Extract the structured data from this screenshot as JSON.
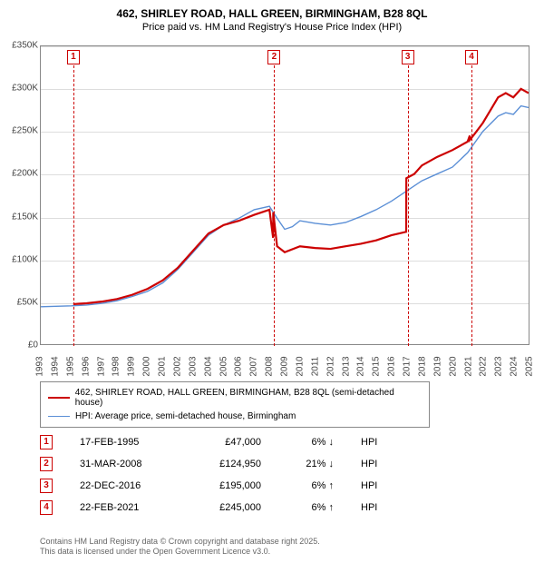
{
  "title": "462, SHIRLEY ROAD, HALL GREEN, BIRMINGHAM, B28 8QL",
  "subtitle": "Price paid vs. HM Land Registry's House Price Index (HPI)",
  "chart": {
    "type": "line",
    "background_color": "#ffffff",
    "grid_color": "#dddddd",
    "border_color": "#888888",
    "ylim": [
      0,
      350000
    ],
    "ytick_step": 50000,
    "yticks": [
      "£0",
      "£50K",
      "£100K",
      "£150K",
      "£200K",
      "£250K",
      "£300K",
      "£350K"
    ],
    "xlim": [
      1993,
      2025
    ],
    "xticks": [
      1993,
      1994,
      1995,
      1996,
      1997,
      1998,
      1999,
      2000,
      2001,
      2002,
      2003,
      2004,
      2005,
      2006,
      2007,
      2008,
      2009,
      2010,
      2011,
      2012,
      2013,
      2014,
      2015,
      2016,
      2017,
      2018,
      2019,
      2020,
      2021,
      2022,
      2023,
      2024,
      2025
    ],
    "label_fontsize": 10,
    "series": [
      {
        "name": "price_paid",
        "color": "#cc0000",
        "line_width": 2.2,
        "data": [
          [
            1995.13,
            47000
          ],
          [
            1995.5,
            47500
          ],
          [
            1996,
            48000
          ],
          [
            1997,
            50000
          ],
          [
            1998,
            53000
          ],
          [
            1999,
            58000
          ],
          [
            2000,
            65000
          ],
          [
            2001,
            75000
          ],
          [
            2002,
            90000
          ],
          [
            2003,
            110000
          ],
          [
            2004,
            130000
          ],
          [
            2005,
            140000
          ],
          [
            2006,
            145000
          ],
          [
            2007,
            152000
          ],
          [
            2008,
            158000
          ],
          [
            2008.24,
            124950
          ],
          [
            2008.25,
            155000
          ],
          [
            2008.5,
            115000
          ],
          [
            2009,
            108000
          ],
          [
            2010,
            115000
          ],
          [
            2011,
            113000
          ],
          [
            2012,
            112000
          ],
          [
            2013,
            115000
          ],
          [
            2014,
            118000
          ],
          [
            2015,
            122000
          ],
          [
            2016,
            128000
          ],
          [
            2016.97,
            132000
          ],
          [
            2016.98,
            195000
          ],
          [
            2017.5,
            200000
          ],
          [
            2018,
            210000
          ],
          [
            2019,
            220000
          ],
          [
            2020,
            228000
          ],
          [
            2021,
            238000
          ],
          [
            2021.14,
            245000
          ],
          [
            2021.15,
            240000
          ],
          [
            2021.5,
            248000
          ],
          [
            2022,
            260000
          ],
          [
            2022.5,
            275000
          ],
          [
            2023,
            290000
          ],
          [
            2023.5,
            295000
          ],
          [
            2024,
            290000
          ],
          [
            2024.5,
            300000
          ],
          [
            2025,
            295000
          ]
        ]
      },
      {
        "name": "hpi",
        "color": "#5b8fd6",
        "line_width": 1.4,
        "data": [
          [
            1993,
            44000
          ],
          [
            1994,
            44500
          ],
          [
            1995,
            45000
          ],
          [
            1996,
            46000
          ],
          [
            1997,
            48000
          ],
          [
            1998,
            51000
          ],
          [
            1999,
            56000
          ],
          [
            2000,
            62000
          ],
          [
            2001,
            72000
          ],
          [
            2002,
            88000
          ],
          [
            2003,
            108000
          ],
          [
            2004,
            128000
          ],
          [
            2005,
            140000
          ],
          [
            2006,
            148000
          ],
          [
            2007,
            158000
          ],
          [
            2008,
            162000
          ],
          [
            2008.5,
            148000
          ],
          [
            2009,
            135000
          ],
          [
            2009.5,
            138000
          ],
          [
            2010,
            145000
          ],
          [
            2011,
            142000
          ],
          [
            2012,
            140000
          ],
          [
            2013,
            143000
          ],
          [
            2014,
            150000
          ],
          [
            2015,
            158000
          ],
          [
            2016,
            168000
          ],
          [
            2017,
            180000
          ],
          [
            2018,
            192000
          ],
          [
            2019,
            200000
          ],
          [
            2020,
            208000
          ],
          [
            2021,
            225000
          ],
          [
            2022,
            250000
          ],
          [
            2023,
            268000
          ],
          [
            2023.5,
            272000
          ],
          [
            2024,
            270000
          ],
          [
            2024.5,
            280000
          ],
          [
            2025,
            278000
          ]
        ]
      }
    ],
    "markers": [
      {
        "n": "1",
        "x": 1995.13
      },
      {
        "n": "2",
        "x": 2008.25
      },
      {
        "n": "3",
        "x": 2016.98
      },
      {
        "n": "4",
        "x": 2021.15
      }
    ]
  },
  "legend": [
    {
      "color": "#cc0000",
      "width": 2.2,
      "label": "462, SHIRLEY ROAD, HALL GREEN, BIRMINGHAM, B28 8QL (semi-detached house)"
    },
    {
      "color": "#5b8fd6",
      "width": 1.4,
      "label": "HPI: Average price, semi-detached house, Birmingham"
    }
  ],
  "sales": [
    {
      "n": "1",
      "date": "17-FEB-1995",
      "price": "£47,000",
      "delta": "6% ↓",
      "tag": "HPI"
    },
    {
      "n": "2",
      "date": "31-MAR-2008",
      "price": "£124,950",
      "delta": "21% ↓",
      "tag": "HPI"
    },
    {
      "n": "3",
      "date": "22-DEC-2016",
      "price": "£195,000",
      "delta": "6% ↑",
      "tag": "HPI"
    },
    {
      "n": "4",
      "date": "22-FEB-2021",
      "price": "£245,000",
      "delta": "6% ↑",
      "tag": "HPI"
    }
  ],
  "footer_line1": "Contains HM Land Registry data © Crown copyright and database right 2025.",
  "footer_line2": "This data is licensed under the Open Government Licence v3.0."
}
